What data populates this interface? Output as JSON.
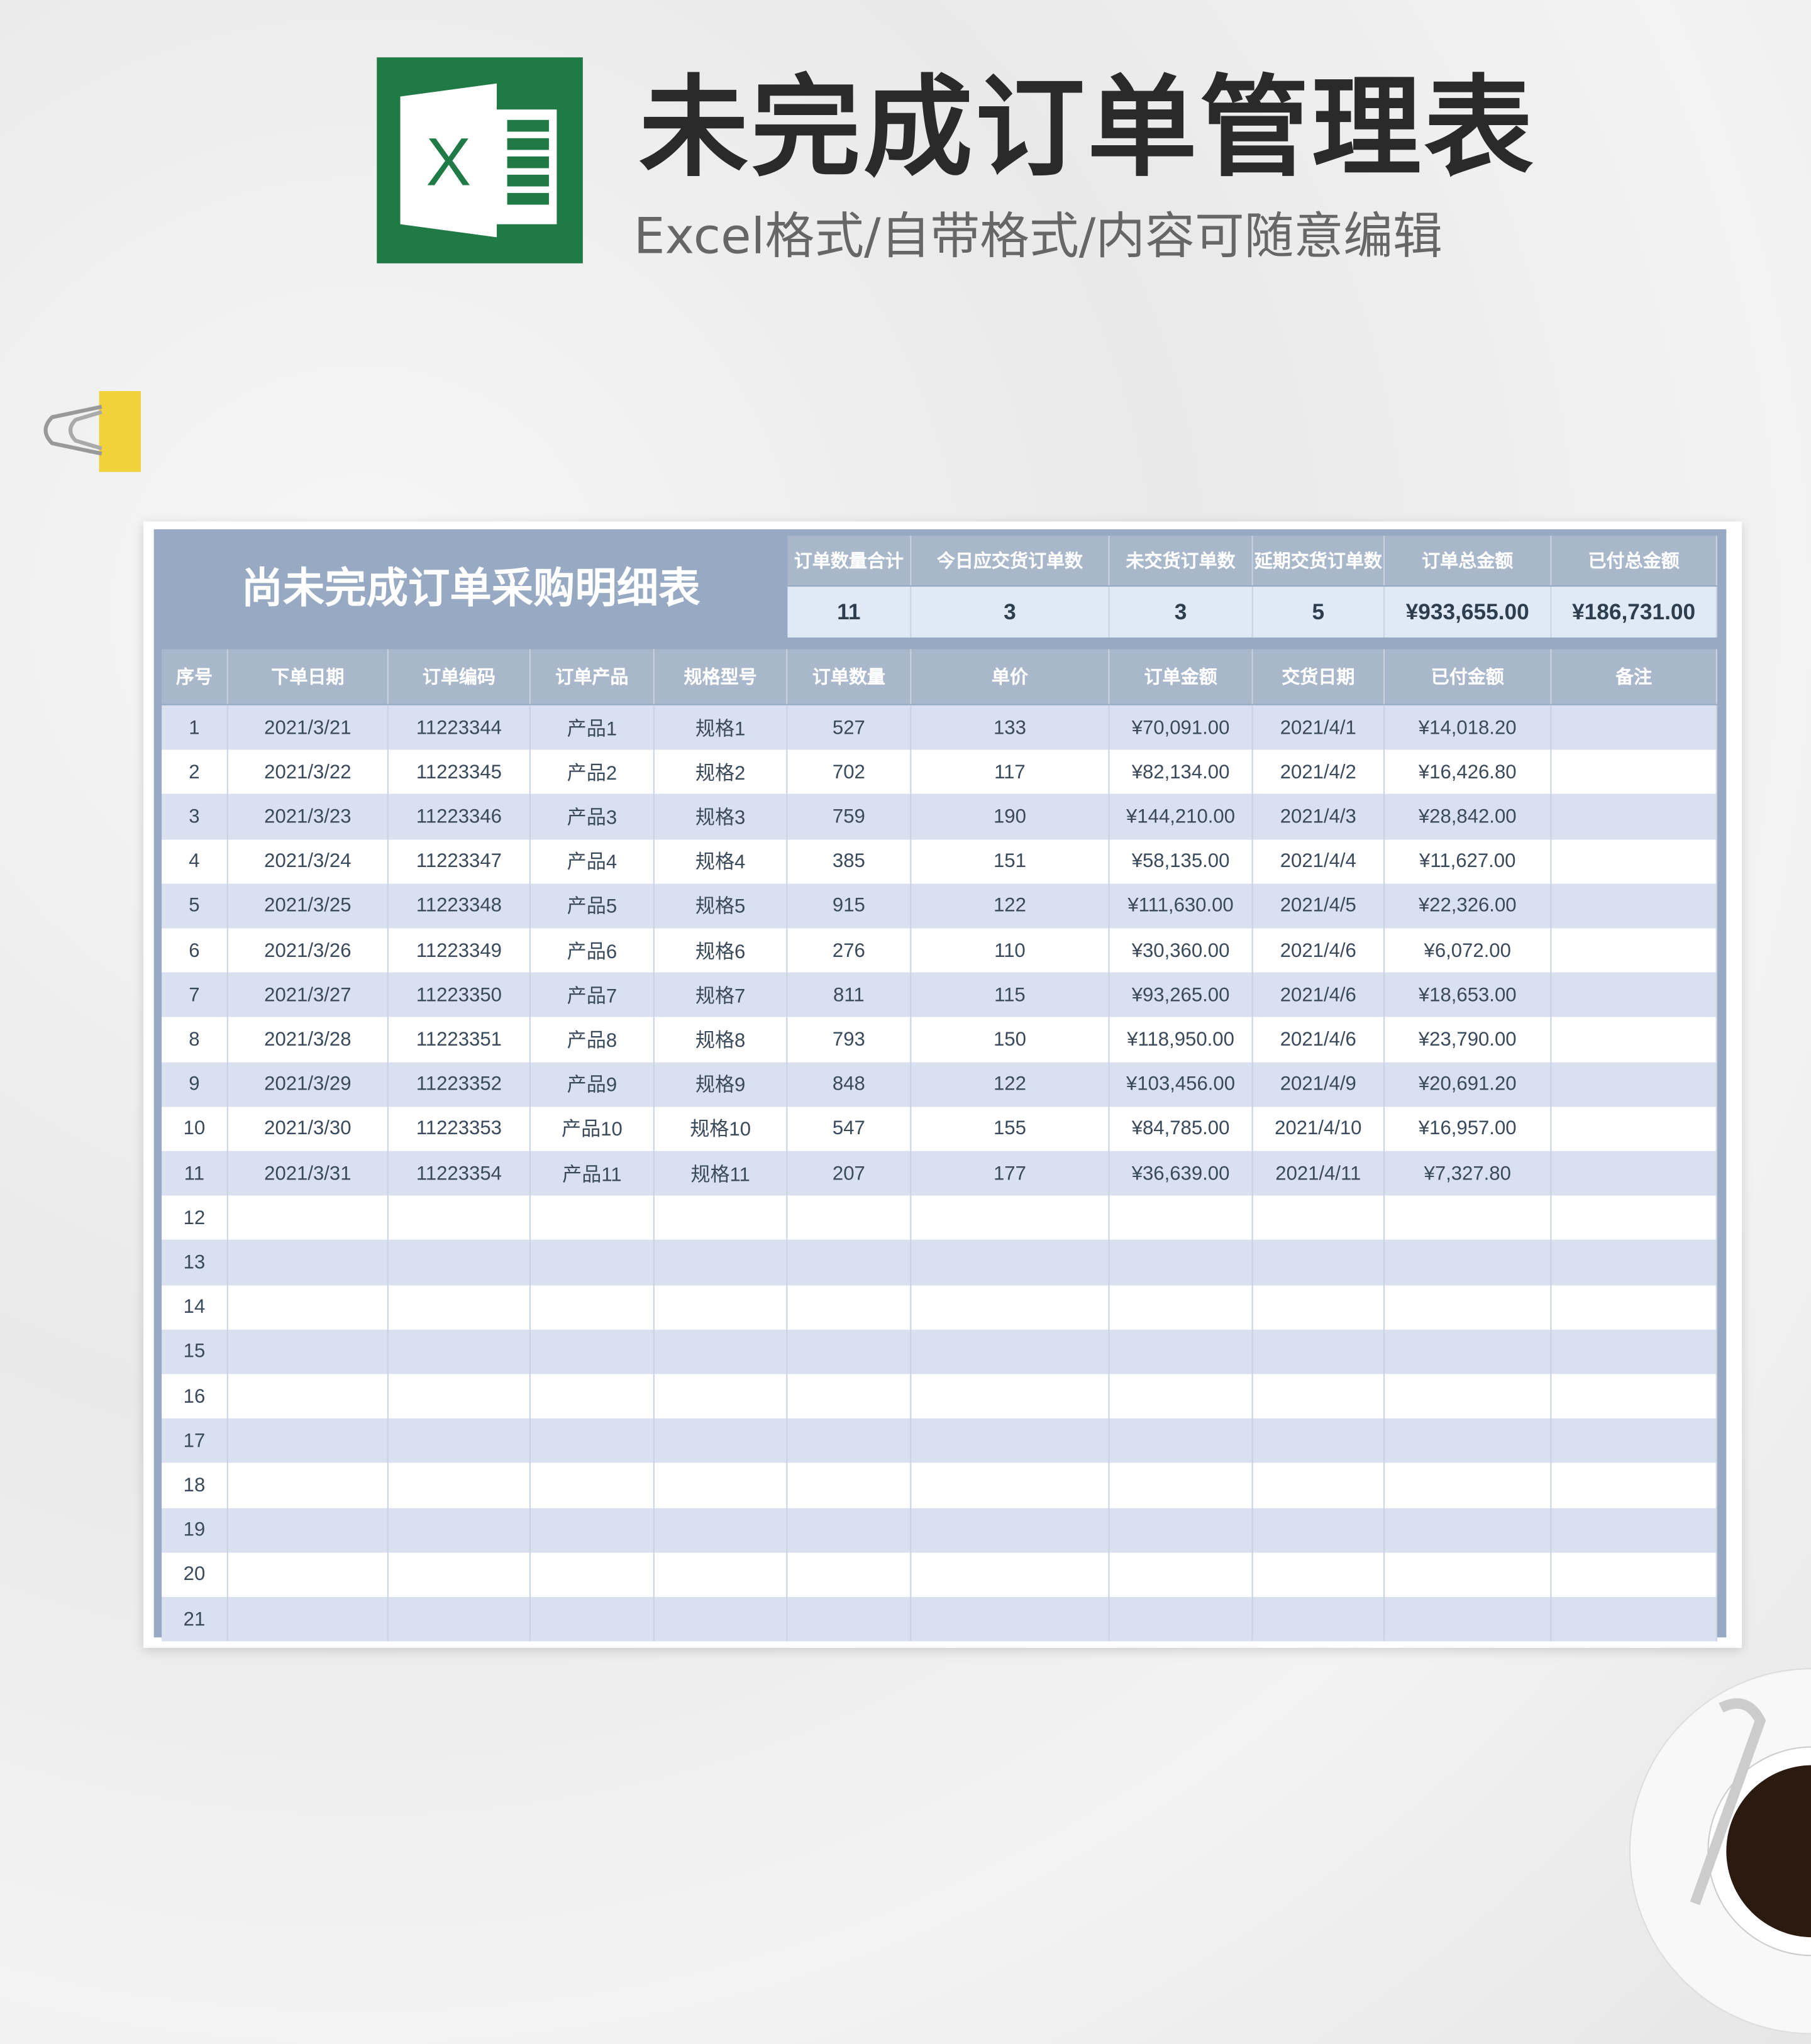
{
  "header": {
    "title": "未完成订单管理表",
    "subtitle": "Excel格式/自带格式/内容可随意编辑",
    "logo_letter": "X"
  },
  "colors": {
    "excel_green": "#1f7a45",
    "header_band": "#97a9c3",
    "header_cell": "#a9b7cb",
    "row_alt": "#d9e1f1",
    "summary_value_bg": "#dfeaf6"
  },
  "sheet": {
    "title": "尚未完成订单采购明细表",
    "summary": [
      {
        "label": "订单数量合计",
        "value": "11"
      },
      {
        "label": "今日应交货订单数",
        "value": "3"
      },
      {
        "label": "未交货订单数",
        "value": "3"
      },
      {
        "label": "延期交货订单数",
        "value": "5"
      },
      {
        "label": "订单总金额",
        "value": "¥933,655.00"
      },
      {
        "label": "已付总金额",
        "value": "¥186,731.00"
      }
    ],
    "columns": [
      "序号",
      "下单日期",
      "订单编码",
      "订单产品",
      "规格型号",
      "订单数量",
      "单价",
      "订单金额",
      "交货日期",
      "已付金额",
      "备注"
    ],
    "rows": [
      [
        "1",
        "2021/3/21",
        "11223344",
        "产品1",
        "规格1",
        "527",
        "133",
        "¥70,091.00",
        "2021/4/1",
        "¥14,018.20",
        ""
      ],
      [
        "2",
        "2021/3/22",
        "11223345",
        "产品2",
        "规格2",
        "702",
        "117",
        "¥82,134.00",
        "2021/4/2",
        "¥16,426.80",
        ""
      ],
      [
        "3",
        "2021/3/23",
        "11223346",
        "产品3",
        "规格3",
        "759",
        "190",
        "¥144,210.00",
        "2021/4/3",
        "¥28,842.00",
        ""
      ],
      [
        "4",
        "2021/3/24",
        "11223347",
        "产品4",
        "规格4",
        "385",
        "151",
        "¥58,135.00",
        "2021/4/4",
        "¥11,627.00",
        ""
      ],
      [
        "5",
        "2021/3/25",
        "11223348",
        "产品5",
        "规格5",
        "915",
        "122",
        "¥111,630.00",
        "2021/4/5",
        "¥22,326.00",
        ""
      ],
      [
        "6",
        "2021/3/26",
        "11223349",
        "产品6",
        "规格6",
        "276",
        "110",
        "¥30,360.00",
        "2021/4/6",
        "¥6,072.00",
        ""
      ],
      [
        "7",
        "2021/3/27",
        "11223350",
        "产品7",
        "规格7",
        "811",
        "115",
        "¥93,265.00",
        "2021/4/6",
        "¥18,653.00",
        ""
      ],
      [
        "8",
        "2021/3/28",
        "11223351",
        "产品8",
        "规格8",
        "793",
        "150",
        "¥118,950.00",
        "2021/4/6",
        "¥23,790.00",
        ""
      ],
      [
        "9",
        "2021/3/29",
        "11223352",
        "产品9",
        "规格9",
        "848",
        "122",
        "¥103,456.00",
        "2021/4/9",
        "¥20,691.20",
        ""
      ],
      [
        "10",
        "2021/3/30",
        "11223353",
        "产品10",
        "规格10",
        "547",
        "155",
        "¥84,785.00",
        "2021/4/10",
        "¥16,957.00",
        ""
      ],
      [
        "11",
        "2021/3/31",
        "11223354",
        "产品11",
        "规格11",
        "207",
        "177",
        "¥36,639.00",
        "2021/4/11",
        "¥7,327.80",
        ""
      ],
      [
        "12",
        "",
        "",
        "",
        "",
        "",
        "",
        "",
        "",
        "",
        ""
      ],
      [
        "13",
        "",
        "",
        "",
        "",
        "",
        "",
        "",
        "",
        "",
        ""
      ],
      [
        "14",
        "",
        "",
        "",
        "",
        "",
        "",
        "",
        "",
        "",
        ""
      ],
      [
        "15",
        "",
        "",
        "",
        "",
        "",
        "",
        "",
        "",
        "",
        ""
      ],
      [
        "16",
        "",
        "",
        "",
        "",
        "",
        "",
        "",
        "",
        "",
        ""
      ],
      [
        "17",
        "",
        "",
        "",
        "",
        "",
        "",
        "",
        "",
        "",
        ""
      ],
      [
        "18",
        "",
        "",
        "",
        "",
        "",
        "",
        "",
        "",
        "",
        ""
      ],
      [
        "19",
        "",
        "",
        "",
        "",
        "",
        "",
        "",
        "",
        "",
        ""
      ],
      [
        "20",
        "",
        "",
        "",
        "",
        "",
        "",
        "",
        "",
        "",
        ""
      ],
      [
        "21",
        "",
        "",
        "",
        "",
        "",
        "",
        "",
        "",
        "",
        ""
      ]
    ]
  }
}
